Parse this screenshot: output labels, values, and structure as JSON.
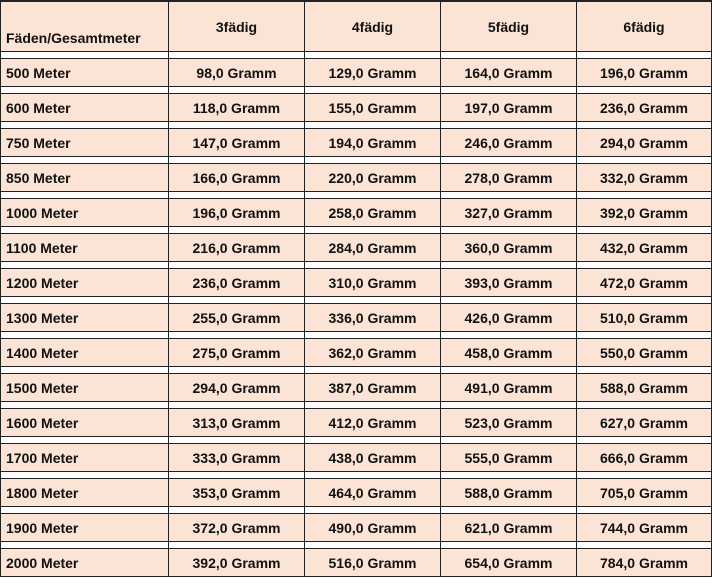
{
  "table": {
    "headers": [
      "Fäden/Gesamtmeter",
      "3fädig",
      "4fädig",
      "5fädig",
      "6fädig"
    ],
    "rows": [
      [
        "500 Meter",
        "98,0 Gramm",
        "129,0 Gramm",
        "164,0 Gramm",
        "196,0 Gramm"
      ],
      [
        "600 Meter",
        "118,0 Gramm",
        "155,0 Gramm",
        "197,0 Gramm",
        "236,0 Gramm"
      ],
      [
        "750 Meter",
        "147,0 Gramm",
        "194,0 Gramm",
        "246,0 Gramm",
        "294,0 Gramm"
      ],
      [
        "850 Meter",
        "166,0 Gramm",
        "220,0 Gramm",
        "278,0 Gramm",
        "332,0 Gramm"
      ],
      [
        "1000 Meter",
        "196,0 Gramm",
        "258,0 Gramm",
        "327,0 Gramm",
        "392,0 Gramm"
      ],
      [
        "1100 Meter",
        "216,0 Gramm",
        "284,0 Gramm",
        "360,0 Gramm",
        "432,0 Gramm"
      ],
      [
        "1200 Meter",
        "236,0 Gramm",
        "310,0 Gramm",
        "393,0 Gramm",
        "472,0 Gramm"
      ],
      [
        "1300 Meter",
        "255,0 Gramm",
        "336,0 Gramm",
        "426,0 Gramm",
        "510,0 Gramm"
      ],
      [
        "1400 Meter",
        "275,0 Gramm",
        "362,0 Gramm",
        "458,0 Gramm",
        "550,0 Gramm"
      ],
      [
        "1500 Meter",
        "294,0 Gramm",
        "387,0 Gramm",
        "491,0 Gramm",
        "588,0 Gramm"
      ],
      [
        "1600 Meter",
        "313,0 Gramm",
        "412,0 Gramm",
        "523,0 Gramm",
        "627,0 Gramm"
      ],
      [
        "1700 Meter",
        "333,0 Gramm",
        "438,0 Gramm",
        "555,0 Gramm",
        "666,0 Gramm"
      ],
      [
        "1800 Meter",
        "353,0 Gramm",
        "464,0 Gramm",
        "588,0 Gramm",
        "705,0 Gramm"
      ],
      [
        "1900 Meter",
        "372,0 Gramm",
        "490,0 Gramm",
        "621,0 Gramm",
        "744,0 Gramm"
      ],
      [
        "2000 Meter",
        "392,0 Gramm",
        "516,0 Gramm",
        "654,0 Gramm",
        "784,0 Gramm"
      ]
    ]
  },
  "colors": {
    "cell_background": "#fbe3d5",
    "border": "#222222"
  }
}
